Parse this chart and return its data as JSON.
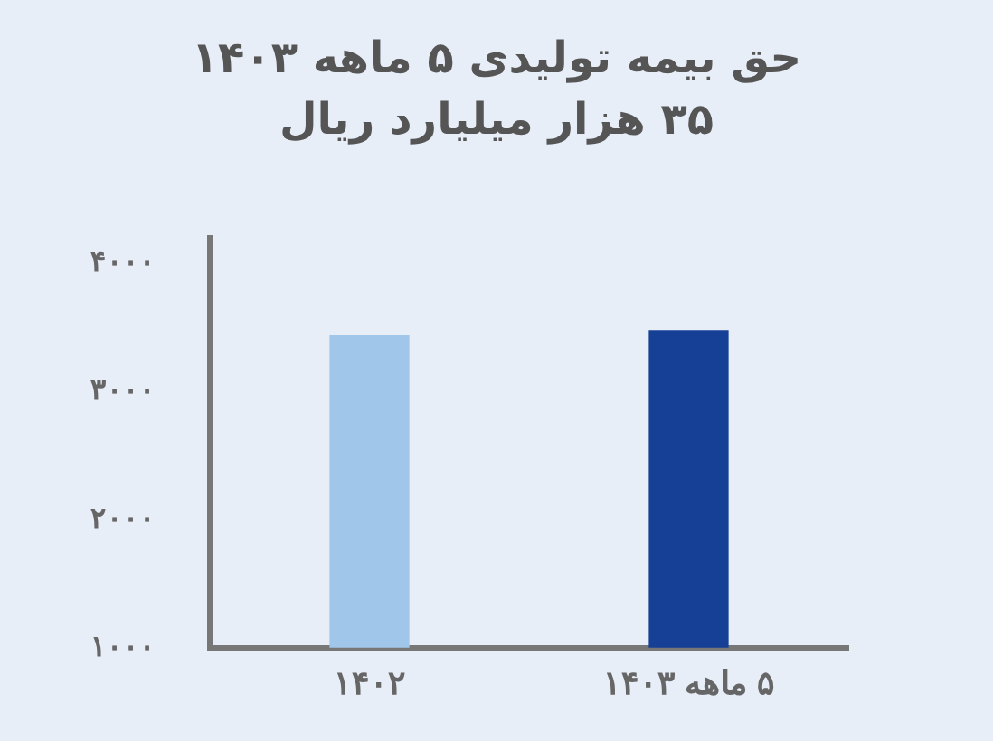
{
  "chart_data": {
    "type": "bar",
    "title": "حق بیمه تولیدی ۵ ماهه ۱۴۰۳",
    "subtitle": "۳۵ هزار میلیارد ریال",
    "categories": [
      "۱۴۰۲",
      "۵ ماهه ۱۴۰۳"
    ],
    "values": [
      3440,
      3480
    ],
    "colors": [
      "#a0c6ea",
      "#163f96"
    ],
    "ylim": [
      1000,
      4200
    ],
    "yticks": [
      {
        "value": 1000,
        "label": "۱۰۰۰"
      },
      {
        "value": 2000,
        "label": "۲۰۰۰"
      },
      {
        "value": 3000,
        "label": "۳۰۰۰"
      },
      {
        "value": 4000,
        "label": "۴۰۰۰"
      }
    ],
    "grid": false,
    "legend": false
  }
}
